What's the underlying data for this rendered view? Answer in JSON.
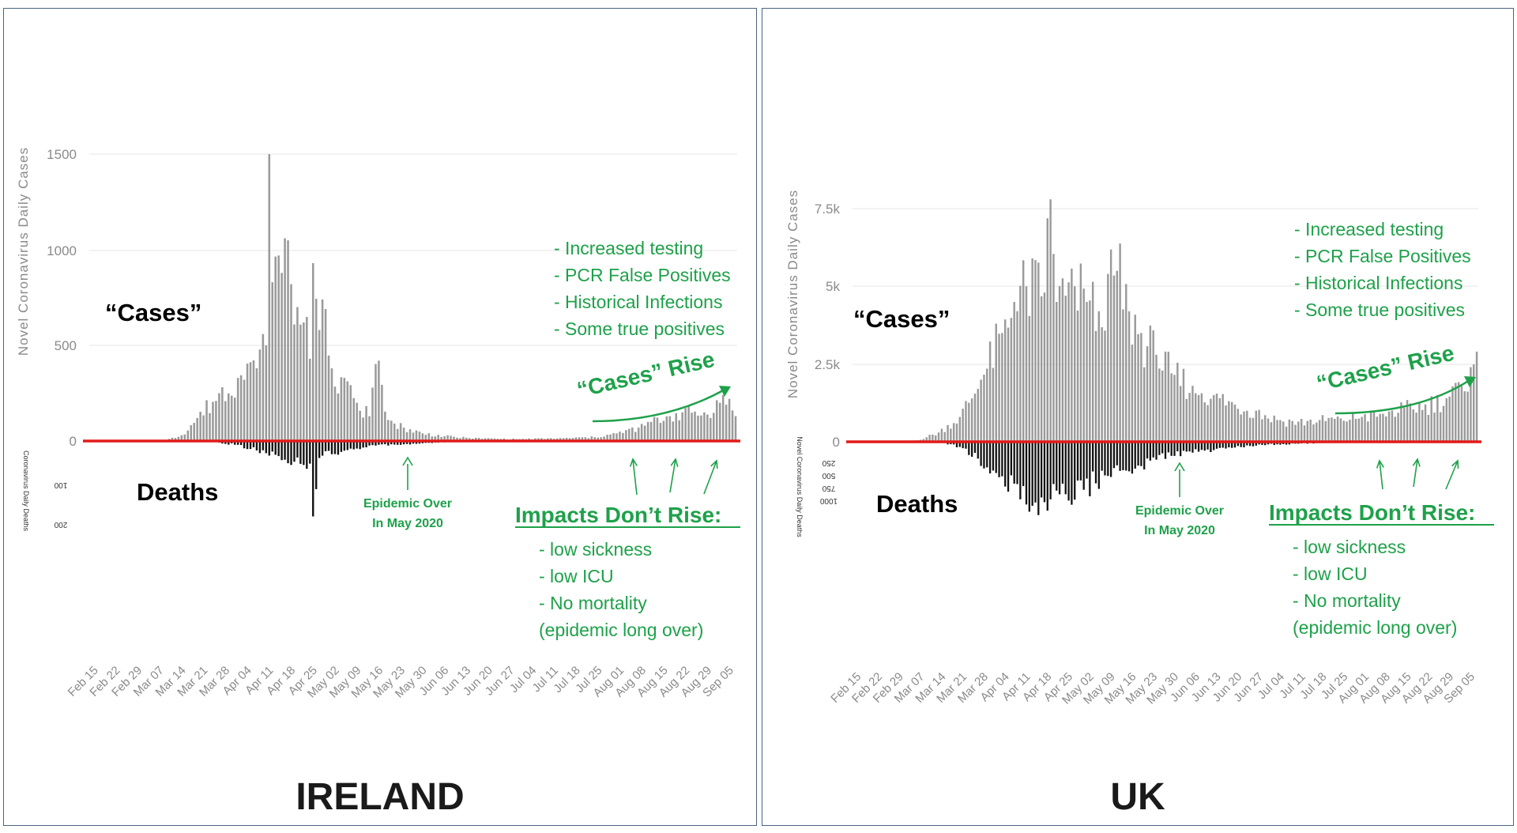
{
  "colors": {
    "cases_bar": "#9a9a9a",
    "deaths_bar": "#111111",
    "baseline": "#e21a1a",
    "annotation": "#1ea14a",
    "grid": "#e4e4e4",
    "axis_text": "#8a8a8a",
    "panel_border": "#4a6480"
  },
  "date_labels": [
    "Feb 15",
    "Feb 22",
    "Feb 29",
    "Mar 07",
    "Mar 14",
    "Mar 21",
    "Mar 28",
    "Apr 04",
    "Apr 11",
    "Apr 18",
    "Apr 25",
    "May 02",
    "May 09",
    "May 16",
    "May 23",
    "May 30",
    "Jun 06",
    "Jun 13",
    "Jun 20",
    "Jun 27",
    "Jul 04",
    "Jul 11",
    "Jul 18",
    "Jul 25",
    "Aug 01",
    "Aug 08",
    "Aug 15",
    "Aug 22",
    "Aug 29",
    "Sep 05"
  ],
  "annotations": {
    "cases_label": "“Cases”",
    "deaths_label": "Deaths",
    "reasons": [
      "- Increased testing",
      "- PCR False Positives",
      "- Historical Infections",
      "- Some true positives"
    ],
    "cases_rise": "“Cases” Rise",
    "epidemic_over_line1": "Epidemic Over",
    "epidemic_over_line2": "In May 2020",
    "impacts_title": "Impacts Don’t Rise:",
    "impacts": [
      "- low sickness",
      "- low ICU",
      "- No mortality",
      "(epidemic long over)"
    ]
  },
  "panels": {
    "ireland": {
      "country": "IRELAND",
      "ylabel": "Novel Coronavirus Daily Cases",
      "deaths_ylabel": "Coronavirus Daily Deaths",
      "yticks": [
        "1500",
        "1000",
        "500",
        "0"
      ],
      "deaths_ticks": [
        "100",
        "200"
      ]
    },
    "uk": {
      "country": "UK",
      "ylabel": "Novel Coronavirus Daily Cases",
      "deaths_ylabel": "Novel Coronavirus Daily Deaths",
      "yticks": [
        "7.5k",
        "5k",
        "2.5k",
        "0"
      ],
      "deaths_ticks": [
        "250",
        "500",
        "750",
        "1000"
      ]
    }
  },
  "chart_data": [
    {
      "type": "bar",
      "title": "IRELAND",
      "ylabel": "Novel Coronavirus Daily Cases",
      "x_start": "Feb 15",
      "x_end": "Sep 08",
      "ylim": [
        0,
        1500
      ],
      "deaths_ylim": [
        0,
        220
      ],
      "grid": true,
      "anchors_cases": [
        [
          "Feb 15",
          0
        ],
        [
          "Mar 01",
          0
        ],
        [
          "Mar 10",
          5
        ],
        [
          "Mar 15",
          30
        ],
        [
          "Mar 20",
          120
        ],
        [
          "Mar 27",
          250
        ],
        [
          "Apr 02",
          330
        ],
        [
          "Apr 08",
          380
        ],
        [
          "Apr 11",
          500
        ],
        [
          "Apr 12",
          1500
        ],
        [
          "Apr 13",
          830
        ],
        [
          "Apr 15",
          970
        ],
        [
          "Apr 17",
          1060
        ],
        [
          "Apr 19",
          820
        ],
        [
          "Apr 21",
          700
        ],
        [
          "Apr 23",
          620
        ],
        [
          "Apr 25",
          430
        ],
        [
          "Apr 26",
          930
        ],
        [
          "Apr 28",
          580
        ],
        [
          "Apr 30",
          690
        ],
        [
          "May 02",
          380
        ],
        [
          "May 06",
          330
        ],
        [
          "May 10",
          200
        ],
        [
          "May 14",
          130
        ],
        [
          "May 17",
          420
        ],
        [
          "May 20",
          110
        ],
        [
          "May 25",
          70
        ],
        [
          "May 31",
          40
        ],
        [
          "Jun 07",
          25
        ],
        [
          "Jun 15",
          15
        ],
        [
          "Jun 30",
          10
        ],
        [
          "Jul 15",
          15
        ],
        [
          "Jul 25",
          20
        ],
        [
          "Aug 01",
          40
        ],
        [
          "Aug 08",
          70
        ],
        [
          "Aug 12",
          100
        ],
        [
          "Aug 18",
          130
        ],
        [
          "Aug 22",
          150
        ],
        [
          "Aug 29",
          150
        ],
        [
          "Sep 03",
          200
        ],
        [
          "Sep 06",
          220
        ],
        [
          "Sep 08",
          130
        ]
      ],
      "anchors_deaths": [
        [
          "Feb 15",
          0
        ],
        [
          "Mar 20",
          0
        ],
        [
          "Mar 25",
          3
        ],
        [
          "Apr 01",
          10
        ],
        [
          "Apr 08",
          25
        ],
        [
          "Apr 15",
          40
        ],
        [
          "Apr 20",
          55
        ],
        [
          "Apr 25",
          60
        ],
        [
          "Apr 26",
          200
        ],
        [
          "Apr 28",
          45
        ],
        [
          "May 02",
          35
        ],
        [
          "May 10",
          20
        ],
        [
          "May 20",
          12
        ],
        [
          "Jun 01",
          5
        ],
        [
          "Jun 15",
          2
        ],
        [
          "Jul 01",
          1
        ],
        [
          "Sep 08",
          1
        ]
      ]
    },
    {
      "type": "bar",
      "title": "UK",
      "ylabel": "Novel Coronavirus Daily Cases",
      "x_start": "Feb 15",
      "x_end": "Sep 08",
      "ylim": [
        0,
        7500
      ],
      "deaths_ylim": [
        0,
        1100
      ],
      "grid": true,
      "anchors_cases": [
        [
          "Feb 15",
          0
        ],
        [
          "Feb 28",
          10
        ],
        [
          "Mar 07",
          50
        ],
        [
          "Mar 14",
          300
        ],
        [
          "Mar 21",
          800
        ],
        [
          "Mar 28",
          2000
        ],
        [
          "Apr 04",
          3500
        ],
        [
          "Apr 08",
          4500
        ],
        [
          "Apr 12",
          5000
        ],
        [
          "Apr 18",
          4800
        ],
        [
          "Apr 20",
          7800
        ],
        [
          "Apr 22",
          4500
        ],
        [
          "Apr 25",
          4700
        ],
        [
          "Apr 28",
          5000
        ],
        [
          "May 02",
          4500
        ],
        [
          "May 06",
          4200
        ],
        [
          "May 09",
          5400
        ],
        [
          "May 12",
          5500
        ],
        [
          "May 16",
          4200
        ],
        [
          "May 20",
          3500
        ],
        [
          "May 25",
          2800
        ],
        [
          "May 30",
          2200
        ],
        [
          "Jun 06",
          1800
        ],
        [
          "Jun 13",
          1500
        ],
        [
          "Jun 20",
          1200
        ],
        [
          "Jun 27",
          1000
        ],
        [
          "Jul 04",
          700
        ],
        [
          "Jul 11",
          650
        ],
        [
          "Jul 18",
          700
        ],
        [
          "Jul 25",
          750
        ],
        [
          "Aug 01",
          800
        ],
        [
          "Aug 08",
          900
        ],
        [
          "Aug 15",
          1100
        ],
        [
          "Aug 22",
          1200
        ],
        [
          "Aug 29",
          1400
        ],
        [
          "Sep 03",
          1800
        ],
        [
          "Sep 06",
          2400
        ],
        [
          "Sep 08",
          2900
        ]
      ],
      "anchors_deaths": [
        [
          "Feb 15",
          0
        ],
        [
          "Mar 10",
          0
        ],
        [
          "Mar 16",
          20
        ],
        [
          "Mar 22",
          100
        ],
        [
          "Mar 30",
          400
        ],
        [
          "Apr 05",
          700
        ],
        [
          "Apr 10",
          900
        ],
        [
          "Apr 15",
          950
        ],
        [
          "Apr 20",
          900
        ],
        [
          "Apr 25",
          820
        ],
        [
          "May 01",
          750
        ],
        [
          "May 05",
          650
        ],
        [
          "May 10",
          550
        ],
        [
          "May 15",
          450
        ],
        [
          "May 20",
          380
        ],
        [
          "May 25",
          280
        ],
        [
          "May 30",
          220
        ],
        [
          "Jun 06",
          170
        ],
        [
          "Jun 13",
          130
        ],
        [
          "Jun 20",
          90
        ],
        [
          "Jun 27",
          60
        ],
        [
          "Jul 04",
          40
        ],
        [
          "Jul 18",
          20
        ],
        [
          "Aug 01",
          12
        ],
        [
          "Aug 15",
          10
        ],
        [
          "Sep 08",
          8
        ]
      ]
    }
  ]
}
